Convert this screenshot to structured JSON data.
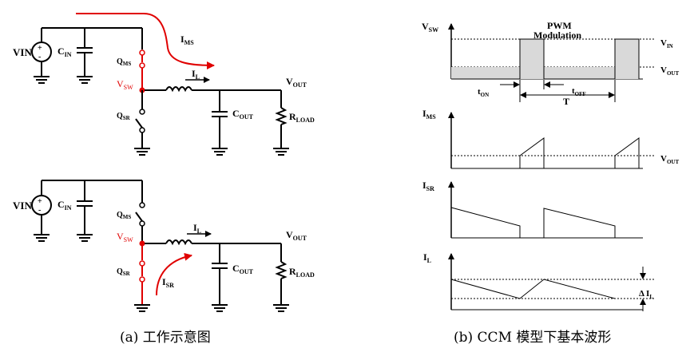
{
  "circuit": {
    "vin": "VIN",
    "cin": "C",
    "cin_sub": "IN",
    "qms": "Q",
    "qms_sub": "MS",
    "qsr": "Q",
    "qsr_sub": "SR",
    "vsw": "V",
    "vsw_sub": "SW",
    "il": "I",
    "il_sub": "L",
    "cout": "C",
    "cout_sub": "OUT",
    "vout": "V",
    "vout_sub": "OUT",
    "rload": "R",
    "rload_sub": "LOAD",
    "ims": "I",
    "ims_sub": "MS",
    "isr": "I",
    "isr_sub": "SR"
  },
  "waveforms": {
    "vsw": "V",
    "vsw_sub": "SW",
    "pwm_line1": "PWM",
    "pwm_line2": "Modulation",
    "vin": "V",
    "vin_sub": "IN",
    "vout": "V",
    "vout_sub": "OUT",
    "ton": "t",
    "ton_sub": "ON",
    "toff": "t",
    "toff_sub": "OFF",
    "period": "T",
    "ims": "I",
    "ims_sub": "MS",
    "vout2": "V",
    "vout2_sub": "OUT",
    "isr": "I",
    "isr_sub": "SR",
    "il": "I",
    "il_sub": "L",
    "delta": "Δ I",
    "delta_sub": "L"
  },
  "captions": {
    "a": "(a) 工作示意图",
    "b": "(b) CCM 模型下基本波形"
  },
  "colors": {
    "highlight": "#e00000",
    "pulse_fill": "#d9d9d9",
    "wire": "#000000"
  }
}
